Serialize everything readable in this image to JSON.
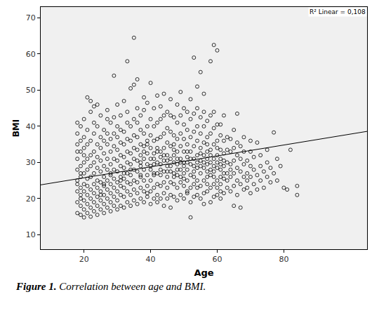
{
  "chart_data": {
    "type": "scatter",
    "x_label": "Age",
    "y_label": "BMI",
    "annotation": "R² Linear = 0,108",
    "caption_label": "Figure 1.",
    "caption": "Correlation between age and BMI.",
    "xlim": [
      7,
      105
    ],
    "xticks": [
      20,
      40,
      60,
      80
    ],
    "ylim": [
      6,
      73
    ],
    "yticks": [
      10,
      20,
      30,
      40,
      50,
      60,
      70
    ],
    "grid": false,
    "series": [
      {
        "type": "scatter",
        "marker": "circle-open",
        "color": "#000000",
        "x": [
          18,
          18,
          18,
          18,
          18,
          18,
          18,
          18,
          18,
          18,
          19,
          19,
          19,
          19,
          19,
          19,
          19,
          19,
          19,
          19,
          20,
          20,
          20,
          20,
          20,
          20,
          20,
          20,
          20,
          20,
          21,
          21,
          21,
          21,
          21,
          21,
          21,
          21,
          21,
          21,
          22,
          22,
          22,
          22,
          22,
          22,
          22,
          22,
          22,
          22,
          23,
          23,
          23,
          23,
          23,
          23,
          23,
          23,
          23,
          23,
          24,
          24,
          24,
          24,
          24,
          24,
          24,
          24,
          24,
          24,
          25,
          25,
          25,
          25,
          25,
          25,
          25,
          25,
          25,
          25,
          26,
          26,
          26,
          26,
          26,
          26,
          26,
          26,
          26,
          26,
          27,
          27,
          27,
          27,
          27,
          27,
          27,
          27,
          27,
          27,
          28,
          28,
          28,
          28,
          28,
          28,
          28,
          28,
          28,
          28,
          29,
          29,
          29,
          29,
          29,
          29,
          29,
          29,
          29,
          29,
          30,
          30,
          30,
          30,
          30,
          30,
          30,
          30,
          30,
          30,
          31,
          31,
          31,
          31,
          31,
          31,
          31,
          31,
          31,
          31,
          32,
          32,
          32,
          32,
          32,
          32,
          32,
          32,
          32,
          32,
          33,
          33,
          33,
          33,
          33,
          33,
          33,
          33,
          33,
          33,
          34,
          34,
          34,
          34,
          34,
          34,
          34,
          34,
          34,
          34,
          35,
          35,
          35,
          35,
          35,
          35,
          35,
          35,
          35,
          35,
          36,
          36,
          36,
          36,
          36,
          36,
          36,
          36,
          36,
          36,
          37,
          37,
          37,
          37,
          37,
          37,
          37,
          37,
          37,
          37,
          38,
          38,
          38,
          38,
          38,
          38,
          38,
          38,
          38,
          38,
          39,
          39,
          39,
          39,
          39,
          39,
          39,
          39,
          39,
          39,
          40,
          40,
          40,
          40,
          40,
          40,
          40,
          40,
          40,
          40,
          41,
          41,
          41,
          41,
          41,
          41,
          41,
          41,
          41,
          41,
          42,
          42,
          42,
          42,
          42,
          42,
          42,
          42,
          42,
          42,
          43,
          43,
          43,
          43,
          43,
          43,
          43,
          43,
          43,
          43,
          44,
          44,
          44,
          44,
          44,
          44,
          44,
          44,
          44,
          44,
          45,
          45,
          45,
          45,
          45,
          45,
          45,
          45,
          45,
          45,
          46,
          46,
          46,
          46,
          46,
          46,
          46,
          46,
          46,
          46,
          47,
          47,
          47,
          47,
          47,
          47,
          47,
          47,
          47,
          47,
          48,
          48,
          48,
          48,
          48,
          48,
          48,
          48,
          48,
          48,
          49,
          49,
          49,
          49,
          49,
          49,
          49,
          49,
          49,
          49,
          50,
          50,
          50,
          50,
          50,
          50,
          50,
          50,
          50,
          50,
          51,
          51,
          51,
          51,
          51,
          51,
          51,
          51,
          51,
          51,
          52,
          52,
          52,
          52,
          52,
          52,
          52,
          52,
          52,
          52,
          53,
          53,
          53,
          53,
          53,
          53,
          53,
          53,
          53,
          53,
          54,
          54,
          54,
          54,
          54,
          54,
          54,
          54,
          54,
          54,
          55,
          55,
          55,
          55,
          55,
          55,
          55,
          55,
          55,
          55,
          56,
          56,
          56,
          56,
          56,
          56,
          56,
          56,
          56,
          56,
          57,
          57,
          57,
          57,
          57,
          57,
          57,
          57,
          57,
          57,
          58,
          58,
          58,
          58,
          58,
          58,
          58,
          58,
          58,
          58,
          59,
          59,
          59,
          59,
          59,
          59,
          59,
          59,
          59,
          59,
          60,
          60,
          60,
          60,
          60,
          60,
          60,
          60,
          60,
          60,
          61,
          61,
          61,
          61,
          61,
          61,
          61,
          61,
          61,
          61,
          62,
          62,
          62,
          62,
          62,
          62,
          62,
          62,
          63,
          63,
          63,
          63,
          63,
          63,
          64,
          64,
          64,
          64,
          64,
          64,
          65,
          65,
          65,
          65,
          65,
          65,
          66,
          66,
          66,
          66,
          66,
          66,
          67,
          67,
          67,
          67,
          67,
          68,
          68,
          68,
          68,
          68,
          69,
          69,
          69,
          69,
          70,
          70,
          70,
          70,
          70,
          71,
          71,
          71,
          72,
          72,
          72,
          73,
          73,
          73,
          74,
          74,
          75,
          75,
          75,
          76,
          76,
          77,
          77,
          78,
          78,
          79,
          80,
          81,
          82,
          84,
          84,
          18,
          19,
          20
        ],
        "values": [
          16,
          19,
          22,
          25,
          28,
          31,
          35,
          38,
          41,
          24,
          15.5,
          18,
          21,
          23,
          26,
          29,
          33,
          36,
          40,
          20,
          14.8,
          17,
          19.5,
          22,
          24,
          27,
          30,
          34,
          37,
          42,
          16,
          18.5,
          21,
          23.5,
          25.5,
          28,
          31,
          35,
          39,
          48,
          15,
          17.5,
          20,
          22.5,
          26,
          29,
          32,
          36,
          44,
          47,
          16.5,
          19,
          21.5,
          24,
          27,
          30,
          33,
          38,
          41,
          45.5,
          15.5,
          18,
          20.5,
          23,
          25,
          28.5,
          31.5,
          35,
          40,
          46,
          17,
          19.5,
          22,
          24.5,
          27.5,
          30.5,
          34,
          37,
          43,
          21,
          16,
          18.5,
          21,
          23.5,
          26,
          29,
          32.5,
          36,
          39,
          24,
          17.5,
          20,
          22.5,
          25,
          28,
          31,
          35,
          38,
          42,
          44.5,
          16.5,
          19,
          21.5,
          24,
          26.5,
          29.5,
          33,
          36.5,
          41,
          27,
          18,
          20.5,
          23,
          25.5,
          28,
          31,
          34.5,
          38,
          54,
          42.5,
          17,
          19.5,
          22,
          24.5,
          27.5,
          30.5,
          33.5,
          37,
          40,
          46,
          18,
          21,
          23.5,
          26,
          29,
          32,
          35.5,
          39,
          43,
          25,
          17.5,
          20.5,
          23,
          25.5,
          28.5,
          31.5,
          35,
          38.5,
          47,
          27,
          19,
          22,
          24.5,
          27,
          30,
          33,
          36.5,
          41,
          58,
          44,
          18,
          21,
          24,
          26.5,
          29.5,
          32.5,
          36,
          40,
          50.5,
          28,
          19.5,
          22.5,
          25,
          28,
          31,
          34,
          37.5,
          42,
          64.5,
          51.5,
          18.5,
          21.5,
          24.5,
          27.5,
          30.5,
          33.5,
          37,
          41,
          53,
          45,
          20,
          23,
          26,
          29,
          32,
          35,
          39,
          43,
          26.5,
          30,
          19,
          22,
          25,
          28,
          31,
          34.5,
          38,
          44.5,
          48,
          33,
          20.5,
          23.5,
          26.5,
          29.5,
          32.5,
          36,
          40,
          46.5,
          21.5,
          35,
          18.5,
          22,
          25,
          28,
          31,
          34,
          37.5,
          42,
          52,
          29,
          20,
          23,
          26.5,
          29.5,
          32.5,
          36,
          40,
          45,
          27,
          31,
          21,
          24,
          27,
          30,
          33,
          36.5,
          41,
          48.5,
          19,
          34,
          20,
          23.5,
          26.5,
          29.5,
          33,
          37,
          42,
          45.5,
          28,
          31.5,
          21.5,
          24.5,
          27.5,
          30.5,
          34,
          38,
          43,
          49,
          18,
          32,
          20,
          23,
          26,
          29,
          32,
          35.5,
          39.5,
          44,
          27.5,
          30.5,
          21,
          24.5,
          27.5,
          31,
          34.5,
          38.5,
          43,
          47.5,
          17.5,
          29,
          20.5,
          24,
          27,
          30,
          33.5,
          37.5,
          42.5,
          26,
          32,
          35,
          19.5,
          23,
          26.5,
          29.5,
          33,
          36.5,
          41,
          46,
          28,
          31,
          21,
          24.5,
          28,
          31,
          34.5,
          38,
          43,
          49.5,
          26,
          30,
          20,
          23.5,
          27,
          30,
          33,
          36.5,
          40.5,
          45,
          25.5,
          29,
          21.5,
          25,
          28,
          31.5,
          35,
          39,
          44,
          22,
          30,
          33,
          14.8,
          19,
          23,
          26.5,
          29.5,
          33,
          37,
          42,
          47.5,
          31,
          20.5,
          24,
          27.5,
          31,
          34.5,
          38.5,
          43.5,
          59,
          29,
          26,
          21,
          25,
          28.5,
          32,
          36,
          40,
          45,
          51,
          23,
          30,
          20,
          23.5,
          27,
          30.5,
          34,
          38,
          42.5,
          55,
          29,
          32.5,
          21.5,
          25,
          28.5,
          32,
          35.5,
          40,
          44,
          49,
          18.5,
          30,
          22,
          26,
          29.5,
          33,
          37,
          41.5,
          24,
          31,
          27.5,
          35,
          19,
          23,
          26.5,
          30,
          33.5,
          38,
          43,
          58,
          28,
          32,
          20.5,
          24,
          27.5,
          31,
          35,
          39.5,
          44,
          62.5,
          29,
          26,
          21,
          25,
          28.5,
          32,
          36,
          40.5,
          61,
          30,
          23,
          34,
          22,
          26,
          29.5,
          33.5,
          37.5,
          40.5,
          24,
          31,
          20,
          28,
          21.5,
          25.5,
          29,
          32.5,
          36,
          43,
          27,
          30.5,
          23,
          27,
          30,
          33.5,
          37,
          25,
          22,
          26,
          29.5,
          33,
          36.5,
          28,
          18,
          23.5,
          27,
          30.5,
          34,
          39,
          21,
          25,
          28.5,
          32,
          35.5,
          43.5,
          17.5,
          24,
          27.5,
          31,
          34.5,
          22.5,
          26,
          29.5,
          33,
          37,
          23,
          27,
          30.5,
          25,
          21.5,
          26,
          29,
          33,
          36,
          24,
          28,
          31.5,
          22.5,
          26.5,
          35.5,
          25,
          29,
          32,
          23,
          27.5,
          26,
          30,
          33.5,
          24.5,
          28.5,
          27,
          38.3,
          25,
          31,
          29,
          23,
          22.5,
          33.5,
          23.5,
          21,
          33,
          27,
          32
        ]
      },
      {
        "type": "line",
        "line_style": "solid",
        "color": "#000000",
        "x": [
          7,
          105
        ],
        "values": [
          23.8,
          38.6
        ]
      }
    ]
  }
}
